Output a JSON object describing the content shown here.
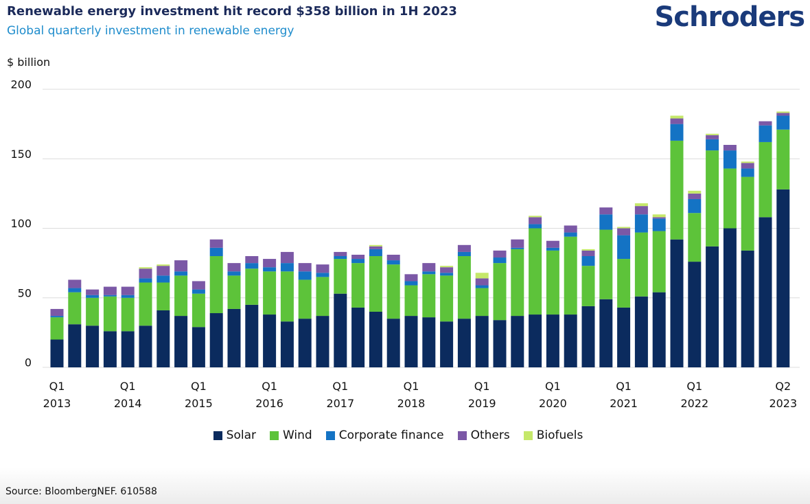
{
  "chart_data": {
    "type": "bar",
    "stacked": true,
    "title": "Renewable energy investment hit record $358 billion in 1H 2023",
    "subtitle": "Global quarterly investment in renewable energy",
    "brand": "Schroders",
    "ylabel": "$ billion",
    "source": "Source: BloombergNEF. 610588",
    "categories": [
      "Q1 2013",
      null,
      null,
      null,
      "Q1 2014",
      null,
      null,
      null,
      "Q1 2015",
      null,
      null,
      null,
      "Q1 2016",
      null,
      null,
      null,
      "Q1 2017",
      null,
      null,
      null,
      "Q1 2018",
      null,
      null,
      null,
      "Q1 2019",
      null,
      null,
      null,
      "Q1 2020",
      null,
      null,
      null,
      "Q1 2021",
      null,
      null,
      null,
      "Q1 2022",
      null,
      null,
      null,
      null,
      "Q2 2023"
    ],
    "series": [
      {
        "name": "Solar",
        "color": "#0b2b5e",
        "values": [
          20,
          31,
          30,
          26,
          26,
          30,
          41,
          37,
          29,
          39,
          42,
          45,
          38,
          33,
          35,
          37,
          53,
          43,
          40,
          35,
          37,
          36,
          33,
          35,
          37,
          34,
          37,
          38,
          38,
          38,
          44,
          49,
          43,
          51,
          54,
          92,
          76,
          87,
          100,
          84,
          108,
          128
        ]
      },
      {
        "name": "Wind",
        "color": "#5dc33a",
        "values": [
          16,
          23,
          20,
          25,
          24,
          31,
          20,
          29,
          24,
          41,
          24,
          26,
          31,
          36,
          28,
          28,
          25,
          32,
          40,
          39,
          22,
          31,
          33,
          45,
          20,
          41,
          48,
          62,
          46,
          56,
          29,
          50,
          35,
          46,
          44,
          71,
          35,
          69,
          43,
          53,
          54,
          43
        ]
      },
      {
        "name": "Corporate finance",
        "color": "#1473c4",
        "values": [
          1,
          3,
          2,
          1,
          2,
          3,
          5,
          3,
          3,
          6,
          3,
          4,
          3,
          6,
          6,
          3,
          2,
          3,
          5,
          3,
          3,
          2,
          2,
          3,
          2,
          4,
          1,
          3,
          2,
          3,
          7,
          11,
          17,
          13,
          9,
          12,
          10,
          8,
          13,
          6,
          12,
          10
        ]
      },
      {
        "name": "Others",
        "color": "#7b58a6",
        "values": [
          5,
          6,
          4,
          6,
          6,
          7,
          7,
          8,
          6,
          6,
          6,
          5,
          6,
          8,
          6,
          6,
          3,
          3,
          2,
          4,
          5,
          6,
          4,
          5,
          5,
          5,
          6,
          5,
          5,
          5,
          4,
          5,
          5,
          6,
          1,
          4,
          4,
          3,
          4,
          4,
          3,
          2
        ]
      },
      {
        "name": "Biofuels",
        "color": "#c5e86a",
        "values": [
          0,
          0,
          0,
          0,
          0,
          1,
          1,
          0,
          0,
          0,
          0,
          0,
          0,
          0,
          0,
          0,
          0,
          0,
          1,
          0,
          0,
          0,
          1,
          0,
          4,
          0,
          0,
          1,
          0,
          0,
          1,
          0,
          1,
          2,
          2,
          2,
          2,
          1,
          0,
          1,
          0,
          1
        ]
      }
    ],
    "ylim": [
      0,
      200
    ],
    "yticks": [
      0,
      50,
      100,
      150,
      200
    ],
    "grid": true
  }
}
